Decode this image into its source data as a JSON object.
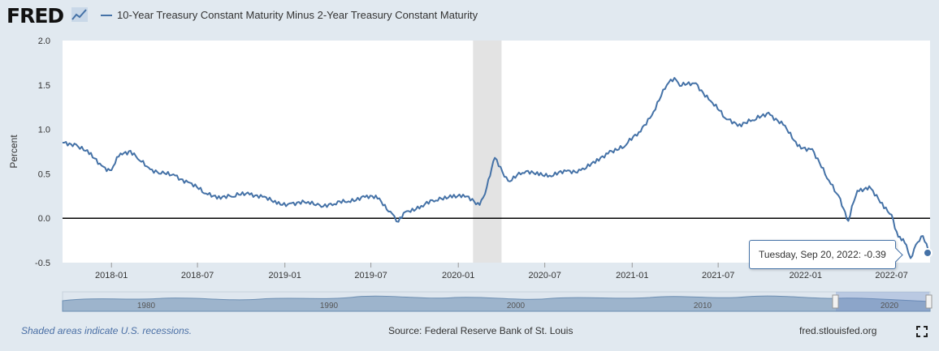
{
  "header": {
    "logo_text": "FRED",
    "logo_icon": "chart-line-icon",
    "legend_label": "10-Year Treasury Constant Maturity Minus 2-Year Treasury Constant Maturity"
  },
  "tooltip": {
    "date_label": "Tuesday, Sep 20, 2022:",
    "value_label": "-0.39"
  },
  "navigator": {
    "year_labels": [
      "1980",
      "1990",
      "2000",
      "2010",
      "2020"
    ]
  },
  "footer": {
    "note": "Shaded areas indicate U.S. recessions.",
    "source": "Source: Federal Reserve Bank of St. Louis",
    "site": "fred.stlouisfed.org",
    "fullscreen_icon": "fullscreen-icon"
  },
  "colors": {
    "series": "#4572a7",
    "recession": "#e3e3e3",
    "background": "#e1e9f0",
    "plot": "#ffffff",
    "zero_line": "#000000"
  },
  "chart_data": {
    "type": "line",
    "title": "",
    "xlabel": "",
    "ylabel": "Percent",
    "ylim": [
      -0.5,
      2.0
    ],
    "yticks": [
      -0.5,
      0.0,
      0.5,
      1.0,
      1.5,
      2.0
    ],
    "ytick_labels": [
      "-0.5",
      "0.0",
      "0.5",
      "1.0",
      "1.5",
      "2.0"
    ],
    "xlim": [
      "2017-09-20",
      "2022-09-20"
    ],
    "xticks": [
      "2018-01",
      "2018-07",
      "2019-01",
      "2019-07",
      "2020-01",
      "2020-07",
      "2021-01",
      "2021-07",
      "2022-01",
      "2022-07"
    ],
    "grid": false,
    "recessions": [
      {
        "start": "2020-02-01",
        "end": "2020-04-01"
      }
    ],
    "reference_line": 0.0,
    "series": [
      {
        "name": "10-Year Treasury Constant Maturity Minus 2-Year Treasury Constant Maturity",
        "points": [
          [
            "2017-09-20",
            0.85
          ],
          [
            "2017-10-15",
            0.84
          ],
          [
            "2017-11-15",
            0.72
          ],
          [
            "2017-12-15",
            0.58
          ],
          [
            "2018-01-01",
            0.54
          ],
          [
            "2018-01-20",
            0.73
          ],
          [
            "2018-02-10",
            0.76
          ],
          [
            "2018-03-01",
            0.65
          ],
          [
            "2018-03-20",
            0.57
          ],
          [
            "2018-04-15",
            0.5
          ],
          [
            "2018-05-15",
            0.48
          ],
          [
            "2018-06-15",
            0.4
          ],
          [
            "2018-07-15",
            0.28
          ],
          [
            "2018-08-15",
            0.25
          ],
          [
            "2018-09-15",
            0.24
          ],
          [
            "2018-10-15",
            0.29
          ],
          [
            "2018-11-15",
            0.24
          ],
          [
            "2018-12-15",
            0.16
          ],
          [
            "2019-01-15",
            0.17
          ],
          [
            "2019-02-15",
            0.17
          ],
          [
            "2019-03-15",
            0.15
          ],
          [
            "2019-04-15",
            0.16
          ],
          [
            "2019-05-15",
            0.19
          ],
          [
            "2019-06-15",
            0.25
          ],
          [
            "2019-07-15",
            0.22
          ],
          [
            "2019-08-15",
            0.05
          ],
          [
            "2019-08-28",
            -0.04
          ],
          [
            "2019-09-15",
            0.08
          ],
          [
            "2019-10-15",
            0.14
          ],
          [
            "2019-11-15",
            0.2
          ],
          [
            "2019-12-15",
            0.26
          ],
          [
            "2020-01-15",
            0.24
          ],
          [
            "2020-02-15",
            0.15
          ],
          [
            "2020-03-01",
            0.35
          ],
          [
            "2020-03-18",
            0.68
          ],
          [
            "2020-04-15",
            0.42
          ],
          [
            "2020-05-15",
            0.51
          ],
          [
            "2020-06-15",
            0.52
          ],
          [
            "2020-07-15",
            0.47
          ],
          [
            "2020-08-15",
            0.53
          ],
          [
            "2020-09-15",
            0.54
          ],
          [
            "2020-10-15",
            0.62
          ],
          [
            "2020-11-15",
            0.76
          ],
          [
            "2020-12-15",
            0.8
          ],
          [
            "2021-01-15",
            0.97
          ],
          [
            "2021-02-15",
            1.2
          ],
          [
            "2021-03-15",
            1.5
          ],
          [
            "2021-03-31",
            1.58
          ],
          [
            "2021-04-15",
            1.49
          ],
          [
            "2021-05-15",
            1.52
          ],
          [
            "2021-06-15",
            1.32
          ],
          [
            "2021-07-15",
            1.13
          ],
          [
            "2021-08-15",
            1.06
          ],
          [
            "2021-09-15",
            1.1
          ],
          [
            "2021-10-15",
            1.19
          ],
          [
            "2021-11-15",
            1.05
          ],
          [
            "2021-12-15",
            0.81
          ],
          [
            "2022-01-15",
            0.78
          ],
          [
            "2022-02-15",
            0.45
          ],
          [
            "2022-03-15",
            0.22
          ],
          [
            "2022-04-01",
            -0.03
          ],
          [
            "2022-04-20",
            0.31
          ],
          [
            "2022-05-15",
            0.36
          ],
          [
            "2022-06-15",
            0.11
          ],
          [
            "2022-07-01",
            0.04
          ],
          [
            "2022-07-15",
            -0.21
          ],
          [
            "2022-08-01",
            -0.3
          ],
          [
            "2022-08-10",
            -0.45
          ],
          [
            "2022-08-25",
            -0.27
          ],
          [
            "2022-09-05",
            -0.2
          ],
          [
            "2022-09-20",
            -0.39
          ]
        ]
      }
    ]
  }
}
